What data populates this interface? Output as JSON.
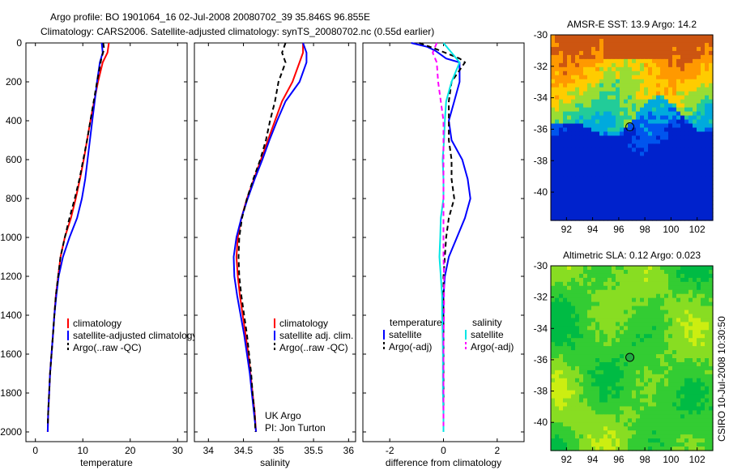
{
  "header": {
    "line1": "Argo profile: BO 1901064_16 02-Jul-2008 20080702_39 35.846S 96.855E",
    "line2": "Climatology: CARS2006. Satellite-adjusted climatology: synTS_20080702.nc (0.55d earlier)"
  },
  "credit": {
    "line1": "UK Argo",
    "line2": "PI: Jon Turton",
    "side": "CSIRO 10-Jul-2008 10:30:50"
  },
  "colors": {
    "climatology": "#ff0000",
    "satellite": "#0000ff",
    "argo": "#000000",
    "satellite_salinity": "#00e5e5",
    "argo_salinity": "#ff00ff",
    "marker": "#000000"
  },
  "chart_data": [
    {
      "id": "temperature-profile",
      "type": "line",
      "xlabel": "temperature",
      "ylabel": "",
      "xlim": [
        -2,
        32
      ],
      "ylim": [
        2050,
        0
      ],
      "xticks": [
        0,
        10,
        20,
        30
      ],
      "yticks": [
        0,
        200,
        400,
        600,
        800,
        1000,
        1200,
        1400,
        1600,
        1800,
        2000
      ],
      "legend_position": "bottom-left",
      "series": [
        {
          "name": "climatology",
          "style": "solid",
          "color": "#ff0000",
          "points": [
            [
              15.5,
              0
            ],
            [
              15.2,
              50
            ],
            [
              14.2,
              100
            ],
            [
              13.2,
              200
            ],
            [
              12.4,
              300
            ],
            [
              11.6,
              400
            ],
            [
              10.9,
              500
            ],
            [
              10.2,
              600
            ],
            [
              9.4,
              700
            ],
            [
              8.5,
              800
            ],
            [
              7.5,
              900
            ],
            [
              6.2,
              1000
            ],
            [
              5.3,
              1100
            ],
            [
              4.8,
              1200
            ],
            [
              4.3,
              1300
            ],
            [
              4.0,
              1400
            ],
            [
              3.7,
              1500
            ],
            [
              3.4,
              1600
            ],
            [
              3.1,
              1700
            ],
            [
              2.9,
              1800
            ],
            [
              2.7,
              1900
            ],
            [
              2.6,
              2000
            ]
          ]
        },
        {
          "name": "satellite-adjusted climatology",
          "style": "solid",
          "color": "#0000ff",
          "points": [
            [
              14.0,
              0
            ],
            [
              14.2,
              50
            ],
            [
              13.6,
              100
            ],
            [
              13.0,
              200
            ],
            [
              12.5,
              300
            ],
            [
              12.0,
              400
            ],
            [
              11.5,
              500
            ],
            [
              11.0,
              600
            ],
            [
              10.5,
              700
            ],
            [
              9.8,
              800
            ],
            [
              8.8,
              900
            ],
            [
              7.2,
              1000
            ],
            [
              5.8,
              1100
            ],
            [
              4.9,
              1200
            ],
            [
              4.4,
              1300
            ],
            [
              4.0,
              1400
            ],
            [
              3.7,
              1500
            ],
            [
              3.4,
              1600
            ],
            [
              3.1,
              1700
            ],
            [
              2.9,
              1800
            ],
            [
              2.7,
              1900
            ],
            [
              2.6,
              2000
            ]
          ]
        },
        {
          "name": "Argo(..raw -QC)",
          "style": "dashed",
          "color": "#000000",
          "points": [
            [
              14.3,
              0
            ],
            [
              14.5,
              30
            ],
            [
              13.9,
              80
            ],
            [
              13.4,
              150
            ],
            [
              13.0,
              200
            ],
            [
              12.3,
              300
            ],
            [
              11.6,
              400
            ],
            [
              10.9,
              500
            ],
            [
              10.1,
              600
            ],
            [
              9.3,
              700
            ],
            [
              8.3,
              800
            ],
            [
              7.2,
              900
            ],
            [
              6.2,
              1000
            ],
            [
              5.3,
              1100
            ],
            [
              4.8,
              1200
            ],
            [
              4.3,
              1300
            ],
            [
              4.0,
              1400
            ],
            [
              3.7,
              1500
            ],
            [
              3.4,
              1600
            ],
            [
              3.1,
              1700
            ],
            [
              2.9,
              1800
            ],
            [
              2.7,
              1900
            ],
            [
              2.6,
              1970
            ]
          ]
        }
      ]
    },
    {
      "id": "salinity-profile",
      "type": "line",
      "xlabel": "salinity",
      "ylabel": "",
      "xlim": [
        33.8,
        36.1
      ],
      "ylim": [
        2050,
        0
      ],
      "xticks": [
        34,
        34.5,
        35,
        35.5,
        36
      ],
      "yticks": [
        0,
        200,
        400,
        600,
        800,
        1000,
        1200,
        1400,
        1600,
        1800,
        2000
      ],
      "legend_position": "bottom-right",
      "series": [
        {
          "name": "climatology",
          "style": "solid",
          "color": "#ff0000",
          "points": [
            [
              35.35,
              0
            ],
            [
              35.35,
              50
            ],
            [
              35.3,
              100
            ],
            [
              35.2,
              200
            ],
            [
              35.05,
              300
            ],
            [
              34.95,
              400
            ],
            [
              34.85,
              500
            ],
            [
              34.75,
              600
            ],
            [
              34.65,
              700
            ],
            [
              34.55,
              800
            ],
            [
              34.47,
              900
            ],
            [
              34.42,
              1000
            ],
            [
              34.4,
              1100
            ],
            [
              34.42,
              1200
            ],
            [
              34.45,
              1300
            ],
            [
              34.49,
              1400
            ],
            [
              34.53,
              1500
            ],
            [
              34.57,
              1600
            ],
            [
              34.6,
              1700
            ],
            [
              34.63,
              1800
            ],
            [
              34.66,
              1900
            ],
            [
              34.68,
              2000
            ]
          ]
        },
        {
          "name": "satellite adj. clim.",
          "style": "solid",
          "color": "#0000ff",
          "points": [
            [
              35.35,
              0
            ],
            [
              35.4,
              50
            ],
            [
              35.4,
              100
            ],
            [
              35.3,
              200
            ],
            [
              35.1,
              300
            ],
            [
              34.98,
              400
            ],
            [
              34.87,
              500
            ],
            [
              34.77,
              600
            ],
            [
              34.66,
              700
            ],
            [
              34.56,
              800
            ],
            [
              34.47,
              900
            ],
            [
              34.4,
              1000
            ],
            [
              34.36,
              1100
            ],
            [
              34.37,
              1200
            ],
            [
              34.41,
              1300
            ],
            [
              34.46,
              1400
            ],
            [
              34.51,
              1500
            ],
            [
              34.55,
              1600
            ],
            [
              34.59,
              1700
            ],
            [
              34.62,
              1800
            ],
            [
              34.65,
              1900
            ],
            [
              34.68,
              2000
            ]
          ]
        },
        {
          "name": "Argo(..raw -QC)",
          "style": "dashed",
          "color": "#000000",
          "points": [
            [
              35.1,
              0
            ],
            [
              35.05,
              50
            ],
            [
              35.1,
              100
            ],
            [
              35.0,
              200
            ],
            [
              34.95,
              300
            ],
            [
              34.88,
              400
            ],
            [
              34.82,
              500
            ],
            [
              34.74,
              600
            ],
            [
              34.64,
              700
            ],
            [
              34.55,
              800
            ],
            [
              34.48,
              900
            ],
            [
              34.44,
              1000
            ],
            [
              34.43,
              1100
            ],
            [
              34.44,
              1200
            ],
            [
              34.47,
              1300
            ],
            [
              34.51,
              1400
            ],
            [
              34.55,
              1500
            ],
            [
              34.58,
              1600
            ],
            [
              34.61,
              1700
            ],
            [
              34.63,
              1800
            ],
            [
              34.66,
              1900
            ],
            [
              34.67,
              2000
            ]
          ]
        }
      ]
    },
    {
      "id": "difference-profile",
      "type": "line",
      "xlabel": "difference from climatology",
      "ylabel": "",
      "xlim": [
        -3.0,
        3.0
      ],
      "ylim": [
        2050,
        0
      ],
      "xticks": [
        -2,
        0,
        2
      ],
      "yticks": [
        0,
        200,
        400,
        600,
        800,
        1000,
        1200,
        1400,
        1600,
        1800,
        2000
      ],
      "legend_position": "bottom",
      "legend_headers": [
        "temperature",
        "salinity"
      ],
      "series": [
        {
          "name": "satellite",
          "group": "temperature",
          "style": "solid",
          "color": "#0000ff",
          "points": [
            [
              -1.2,
              0
            ],
            [
              -0.6,
              20
            ],
            [
              -0.3,
              40
            ],
            [
              0.1,
              80
            ],
            [
              0.6,
              100
            ],
            [
              0.6,
              200
            ],
            [
              0.4,
              300
            ],
            [
              0.2,
              400
            ],
            [
              0.3,
              500
            ],
            [
              0.7,
              600
            ],
            [
              0.9,
              700
            ],
            [
              1.0,
              800
            ],
            [
              0.8,
              900
            ],
            [
              0.5,
              1000
            ],
            [
              0.2,
              1100
            ],
            [
              0.05,
              1200
            ],
            [
              0.0,
              1300
            ],
            [
              0.0,
              1500
            ],
            [
              0.0,
              2000
            ]
          ]
        },
        {
          "name": "Argo(-adj)",
          "group": "temperature",
          "style": "dashed",
          "color": "#000000",
          "points": [
            [
              -0.9,
              0
            ],
            [
              -0.3,
              30
            ],
            [
              0.6,
              80
            ],
            [
              0.8,
              100
            ],
            [
              0.3,
              200
            ],
            [
              0.2,
              300
            ],
            [
              0.2,
              400
            ],
            [
              0.2,
              500
            ],
            [
              0.3,
              600
            ],
            [
              0.3,
              700
            ],
            [
              0.4,
              800
            ],
            [
              0.2,
              900
            ],
            [
              0.1,
              1000
            ],
            [
              0.05,
              1100
            ],
            [
              0.0,
              1200
            ],
            [
              0.0,
              1400
            ],
            [
              0.0,
              1600
            ],
            [
              0.0,
              1800
            ],
            [
              0.0,
              1970
            ]
          ]
        },
        {
          "name": "satellite",
          "group": "salinity",
          "style": "solid",
          "color": "#00e5e5",
          "points": [
            [
              0.0,
              0
            ],
            [
              0.3,
              50
            ],
            [
              0.6,
              100
            ],
            [
              0.3,
              200
            ],
            [
              0.1,
              300
            ],
            [
              0.05,
              400
            ],
            [
              0.02,
              500
            ],
            [
              -0.03,
              600
            ],
            [
              0.0,
              700
            ],
            [
              0.0,
              800
            ],
            [
              -0.1,
              900
            ],
            [
              -0.12,
              1000
            ],
            [
              -0.15,
              1100
            ],
            [
              -0.1,
              1200
            ],
            [
              -0.05,
              1300
            ],
            [
              -0.05,
              1400
            ],
            [
              -0.03,
              1500
            ],
            [
              -0.02,
              1600
            ],
            [
              -0.02,
              1700
            ],
            [
              -0.02,
              1800
            ],
            [
              0.0,
              1900
            ],
            [
              0.0,
              2000
            ]
          ]
        },
        {
          "name": "Argo(-adj)",
          "group": "salinity",
          "style": "dashed",
          "color": "#ff00ff",
          "points": [
            [
              -0.25,
              0
            ],
            [
              -0.4,
              50
            ],
            [
              -0.25,
              100
            ],
            [
              -0.2,
              200
            ],
            [
              -0.1,
              300
            ],
            [
              0.0,
              400
            ],
            [
              0.0,
              500
            ],
            [
              0.0,
              700
            ],
            [
              0.0,
              900
            ],
            [
              0.0,
              1100
            ],
            [
              0.02,
              1200
            ],
            [
              0.02,
              1300
            ],
            [
              0.02,
              1400
            ],
            [
              0.0,
              1500
            ],
            [
              0.0,
              1600
            ],
            [
              0.0,
              1700
            ],
            [
              0.0,
              1800
            ],
            [
              0.0,
              1900
            ],
            [
              0.0,
              1970
            ]
          ]
        }
      ]
    },
    {
      "id": "sst-map",
      "type": "heatmap",
      "title": "AMSR-E SST: 13.9 Argo: 14.2",
      "xlim": [
        90.8,
        103.2
      ],
      "ylim": [
        -41.8,
        -30
      ],
      "xticks": [
        92,
        94,
        96,
        98,
        100,
        102
      ],
      "yticks": [
        -30,
        -32,
        -34,
        -36,
        -38,
        -40
      ],
      "marker": {
        "lon": 96.85,
        "lat": -35.85
      },
      "color_bands": [
        "#0022cc",
        "#0055ee",
        "#00aadd",
        "#22cc99",
        "#99dd33",
        "#ffcc00",
        "#ff9900",
        "#cc5511"
      ]
    },
    {
      "id": "sla-map",
      "type": "heatmap",
      "title": "Altimetric SLA: 0.12 Argo: 0.023",
      "xlim": [
        90.8,
        103.2
      ],
      "ylim": [
        -41.8,
        -30
      ],
      "xticks": [
        92,
        94,
        96,
        98,
        100,
        102
      ],
      "yticks": [
        -30,
        -32,
        -34,
        -36,
        -38,
        -40
      ],
      "marker": {
        "lon": 96.85,
        "lat": -35.85
      },
      "color_bands": [
        "#00bb44",
        "#33cc33",
        "#88dd22",
        "#ccee11"
      ]
    }
  ]
}
